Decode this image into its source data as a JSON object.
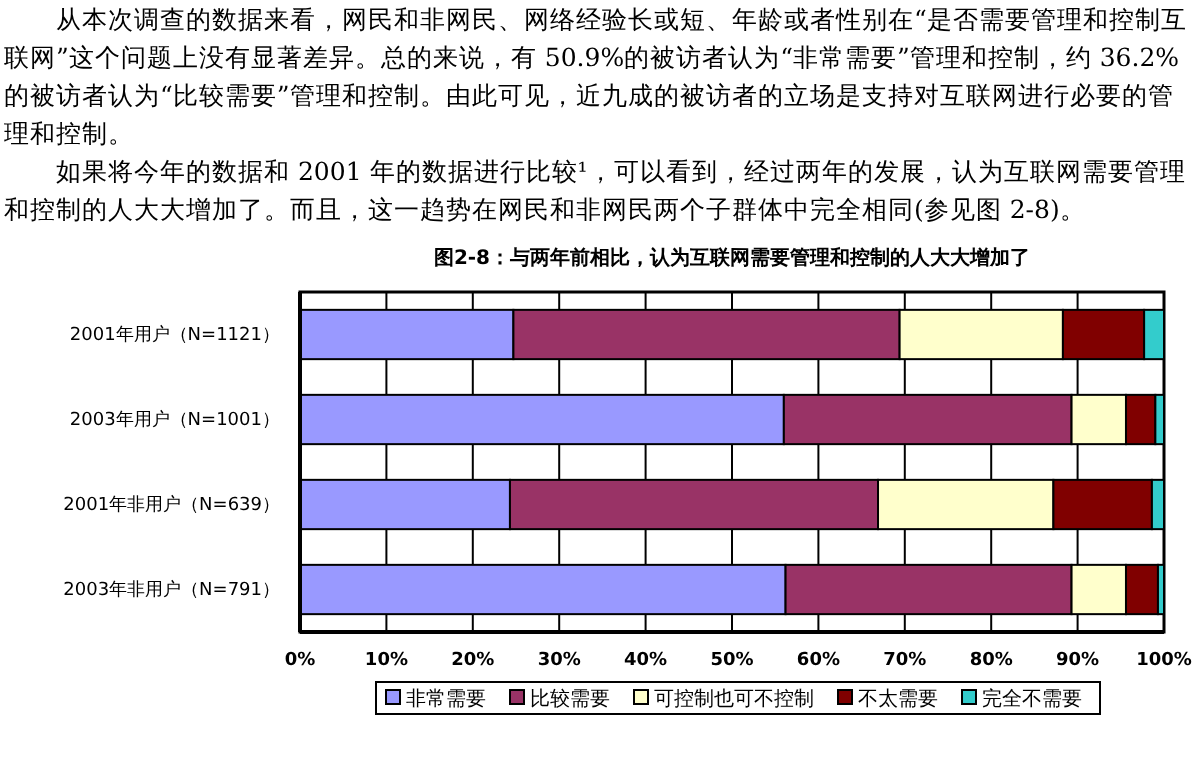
{
  "chart_data": {
    "type": "bar",
    "orientation": "horizontal",
    "stacked": true,
    "title": "图2-8：与两年前相比，认为互联网需要管理和控制的人大大增加了",
    "annotations": [
      "从本次调查的数据来看，网民和非网民、网络经验长或短、年龄或者性别在“是否需要管理和控制互联网”这个问题上没有显著差异。总的来说，有 50.9%的被访者认为“非常需要”管理和控制，约 36.2%的被访者认为“比较需要”管理和控制。由此可见，近九成的被访者的立场是支持对互联网进行必要的管理和控制。",
      "如果将今年的数据和 2001 年的数据进行比较¹，可以看到，经过两年的发展，认为互联网需要管理和控制的人大大增加了。而且，这一趋势在网民和非网民两个子群体中完全相同(参见图 2-8)。"
    ],
    "categories": [
      "2001年用户（N=1121）",
      "2003年用户（N=1001）",
      "2001年非用户（N=639）",
      "2003年非用户（N=791）"
    ],
    "series": [
      {
        "name": "非常需要",
        "color": "#9999ff",
        "values": [
          24.7,
          56.0,
          24.3,
          56.2
        ]
      },
      {
        "name": "比较需要",
        "color": "#993366",
        "values": [
          44.7,
          33.3,
          42.6,
          33.1
        ]
      },
      {
        "name": "可控制也可不控制",
        "color": "#ffffcc",
        "values": [
          18.9,
          6.3,
          20.3,
          6.3
        ]
      },
      {
        "name": "不太需要",
        "color": "#800000",
        "values": [
          9.4,
          3.4,
          11.4,
          3.7
        ]
      },
      {
        "name": "完全不需要",
        "color": "#33cccc",
        "values": [
          2.3,
          1.0,
          1.4,
          0.7
        ]
      }
    ],
    "xlim": [
      0,
      100
    ],
    "xticks": [
      {
        "value": 0,
        "label": "0%"
      },
      {
        "value": 10,
        "label": "10%"
      },
      {
        "value": 20,
        "label": "20%"
      },
      {
        "value": 30,
        "label": "30%"
      },
      {
        "value": 40,
        "label": "40%"
      },
      {
        "value": 50,
        "label": "50%"
      },
      {
        "value": 60,
        "label": "60%"
      },
      {
        "value": 70,
        "label": "70%"
      },
      {
        "value": 80,
        "label": "80%"
      },
      {
        "value": 90,
        "label": "90%"
      },
      {
        "value": 100,
        "label": "100%"
      }
    ],
    "grid": "x",
    "legend": "bottom"
  }
}
